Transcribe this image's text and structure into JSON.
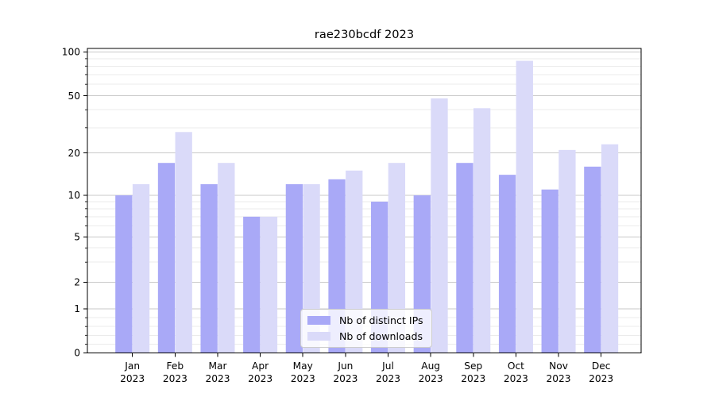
{
  "window": {
    "title": "rae230bcdf 2023"
  },
  "chart_data": {
    "type": "bar",
    "title": "rae230bcdf 2023",
    "categories": [
      "Jan",
      "Feb",
      "Mar",
      "Apr",
      "May",
      "Jun",
      "Jul",
      "Aug",
      "Sep",
      "Oct",
      "Nov",
      "Dec"
    ],
    "year_label": "2023",
    "series": [
      {
        "name": "Nb of distinct IPs",
        "color": "#a9a9f7",
        "values": [
          10,
          17,
          12,
          7,
          12,
          13,
          9,
          10,
          17,
          14,
          11,
          16
        ]
      },
      {
        "name": "Nb of downloads",
        "color": "#dadaf9",
        "values": [
          12,
          28,
          17,
          7,
          12,
          15,
          17,
          48,
          41,
          87,
          21,
          23
        ]
      }
    ],
    "xlabel": "",
    "ylabel": "",
    "yscale": "symlog-like",
    "ylim": [
      0,
      100
    ],
    "y_major_ticks": [
      0,
      1,
      2,
      5,
      10,
      20,
      50,
      100
    ],
    "y_minor_ticks": [
      0.2,
      0.4,
      0.6,
      0.8,
      3,
      4,
      6,
      7,
      8,
      9,
      30,
      40,
      60,
      70,
      80,
      90
    ],
    "grid": true,
    "legend_position": "lower center"
  },
  "colors": {
    "major_grid": "#c9c9c9",
    "minor_grid": "#ebebeb",
    "axis": "#000000",
    "background": "#ffffff"
  }
}
